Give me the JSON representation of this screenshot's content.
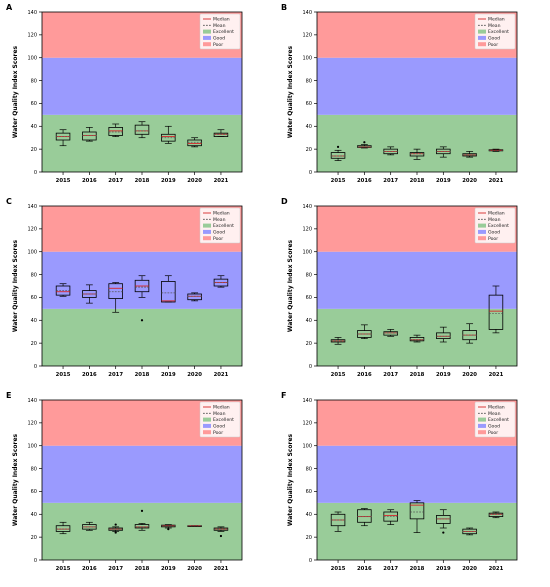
{
  "colors": {
    "band_poor": "#ff9a9a",
    "band_good": "#9a9afe",
    "band_excellent": "#99cc99",
    "median": "#d62728",
    "mean": "#555555",
    "box_edge": "#000000",
    "outlier": "#000000"
  },
  "chart_data": [
    {
      "type": "box",
      "panel_label": "A",
      "ylabel": "Water Quality Index Scores",
      "ylim": [
        0,
        140
      ],
      "yticks": [
        "0",
        "20",
        "40",
        "60",
        "80",
        "100",
        "120",
        "140"
      ],
      "bands": [
        {
          "name": "Excellent",
          "from": 0,
          "to": 50
        },
        {
          "name": "Good",
          "from": 50,
          "to": 100
        },
        {
          "name": "Poor",
          "from": 100,
          "to": 140
        }
      ],
      "legend": {
        "position": "top-right",
        "entries": [
          "Median",
          "Mean",
          "Excellent",
          "Good",
          "Poor"
        ]
      },
      "categories": [
        "2015",
        "2016",
        "2017",
        "2018",
        "2019",
        "2020",
        "2021"
      ],
      "boxes": [
        {
          "whisker_low": 23,
          "q1": 28,
          "median": 31,
          "q3": 34,
          "whisker_high": 37,
          "mean": 31,
          "outliers": []
        },
        {
          "whisker_low": 27,
          "q1": 28,
          "median": 32,
          "q3": 35,
          "whisker_high": 39,
          "mean": 32,
          "outliers": []
        },
        {
          "whisker_low": 31,
          "q1": 32,
          "median": 36,
          "q3": 39,
          "whisker_high": 42,
          "mean": 35,
          "outliers": []
        },
        {
          "whisker_low": 30,
          "q1": 33,
          "median": 36,
          "q3": 41,
          "whisker_high": 44,
          "mean": 36,
          "outliers": []
        },
        {
          "whisker_low": 25,
          "q1": 27,
          "median": 31,
          "q3": 33,
          "whisker_high": 40,
          "mean": 30,
          "outliers": []
        },
        {
          "whisker_low": 22,
          "q1": 23,
          "median": 25,
          "q3": 28,
          "whisker_high": 30,
          "mean": 26,
          "outliers": []
        },
        {
          "whisker_low": 31,
          "q1": 31,
          "median": 33,
          "q3": 34,
          "whisker_high": 37,
          "mean": 33,
          "outliers": []
        }
      ]
    },
    {
      "type": "box",
      "panel_label": "B",
      "ylabel": "Water Quality Index Scores",
      "ylim": [
        0,
        140
      ],
      "yticks": [
        "0",
        "20",
        "40",
        "60",
        "80",
        "100",
        "120",
        "140"
      ],
      "bands": [
        {
          "name": "Excellent",
          "from": 0,
          "to": 50
        },
        {
          "name": "Good",
          "from": 50,
          "to": 100
        },
        {
          "name": "Poor",
          "from": 100,
          "to": 140
        }
      ],
      "legend": {
        "position": "top-right",
        "entries": [
          "Median",
          "Mean",
          "Excellent",
          "Good",
          "Poor"
        ]
      },
      "categories": [
        "2015",
        "2016",
        "2017",
        "2018",
        "2019",
        "2020",
        "2021"
      ],
      "boxes": [
        {
          "whisker_low": 10,
          "q1": 12,
          "median": 14,
          "q3": 17,
          "whisker_high": 19,
          "mean": 14,
          "outliers": [
            22
          ]
        },
        {
          "whisker_low": 21,
          "q1": 21.5,
          "median": 22,
          "q3": 23,
          "whisker_high": 24,
          "mean": 22,
          "outliers": [
            26
          ]
        },
        {
          "whisker_low": 15,
          "q1": 16,
          "median": 18,
          "q3": 20,
          "whisker_high": 22,
          "mean": 18,
          "outliers": []
        },
        {
          "whisker_low": 11,
          "q1": 14,
          "median": 16,
          "q3": 17,
          "whisker_high": 20,
          "mean": 16,
          "outliers": []
        },
        {
          "whisker_low": 13,
          "q1": 16,
          "median": 18,
          "q3": 20,
          "whisker_high": 22,
          "mean": 18,
          "outliers": []
        },
        {
          "whisker_low": 13,
          "q1": 14,
          "median": 15,
          "q3": 16,
          "whisker_high": 18,
          "mean": 15,
          "outliers": []
        },
        {
          "whisker_low": 18,
          "q1": 18.5,
          "median": 19,
          "q3": 19.5,
          "whisker_high": 20,
          "mean": 19,
          "outliers": []
        }
      ]
    },
    {
      "type": "box",
      "panel_label": "C",
      "ylabel": "Water Quality Index Scores",
      "ylim": [
        0,
        140
      ],
      "yticks": [
        "0",
        "20",
        "40",
        "60",
        "80",
        "100",
        "120",
        "140"
      ],
      "bands": [
        {
          "name": "Excellent",
          "from": 0,
          "to": 50
        },
        {
          "name": "Good",
          "from": 50,
          "to": 100
        },
        {
          "name": "Poor",
          "from": 100,
          "to": 140
        }
      ],
      "legend": {
        "position": "top-right",
        "entries": [
          "Median",
          "Mean",
          "Excellent",
          "Good",
          "Poor"
        ]
      },
      "categories": [
        "2015",
        "2016",
        "2017",
        "2018",
        "2019",
        "2020",
        "2021"
      ],
      "boxes": [
        {
          "whisker_low": 61,
          "q1": 62,
          "median": 65,
          "q3": 70,
          "whisker_high": 72,
          "mean": 66,
          "outliers": []
        },
        {
          "whisker_low": 55,
          "q1": 60,
          "median": 63,
          "q3": 66,
          "whisker_high": 71,
          "mean": 63,
          "outliers": []
        },
        {
          "whisker_low": 47,
          "q1": 59,
          "median": 68,
          "q3": 72,
          "whisker_high": 73,
          "mean": 65,
          "outliers": []
        },
        {
          "whisker_low": 60,
          "q1": 65,
          "median": 70,
          "q3": 75,
          "whisker_high": 79,
          "mean": 69,
          "outliers": [
            40
          ]
        },
        {
          "whisker_low": 56,
          "q1": 56,
          "median": 57,
          "q3": 74,
          "whisker_high": 79,
          "mean": 64,
          "outliers": []
        },
        {
          "whisker_low": 57,
          "q1": 58,
          "median": 61,
          "q3": 63,
          "whisker_high": 64,
          "mean": 61,
          "outliers": []
        },
        {
          "whisker_low": 69,
          "q1": 70,
          "median": 73,
          "q3": 76,
          "whisker_high": 79,
          "mean": 73,
          "outliers": []
        }
      ]
    },
    {
      "type": "box",
      "panel_label": "D",
      "ylabel": "Water Quality Index Scores",
      "ylim": [
        0,
        140
      ],
      "yticks": [
        "0",
        "20",
        "40",
        "60",
        "80",
        "100",
        "120",
        "140"
      ],
      "bands": [
        {
          "name": "Excellent",
          "from": 0,
          "to": 50
        },
        {
          "name": "Good",
          "from": 50,
          "to": 100
        },
        {
          "name": "Poor",
          "from": 100,
          "to": 140
        }
      ],
      "legend": {
        "position": "top-right",
        "entries": [
          "Median",
          "Mean",
          "Excellent",
          "Good",
          "Poor"
        ]
      },
      "categories": [
        "2015",
        "2016",
        "2017",
        "2018",
        "2019",
        "2020",
        "2021"
      ],
      "boxes": [
        {
          "whisker_low": 19,
          "q1": 21,
          "median": 22,
          "q3": 23,
          "whisker_high": 25,
          "mean": 22,
          "outliers": []
        },
        {
          "whisker_low": 24,
          "q1": 25,
          "median": 28,
          "q3": 31,
          "whisker_high": 36,
          "mean": 28,
          "outliers": []
        },
        {
          "whisker_low": 26,
          "q1": 27,
          "median": 29,
          "q3": 30,
          "whisker_high": 32,
          "mean": 29,
          "outliers": []
        },
        {
          "whisker_low": 21,
          "q1": 22,
          "median": 23,
          "q3": 25,
          "whisker_high": 27,
          "mean": 23,
          "outliers": []
        },
        {
          "whisker_low": 21,
          "q1": 24,
          "median": 26,
          "q3": 29,
          "whisker_high": 34,
          "mean": 26,
          "outliers": []
        },
        {
          "whisker_low": 20,
          "q1": 23,
          "median": 27,
          "q3": 31,
          "whisker_high": 37,
          "mean": 27,
          "outliers": []
        },
        {
          "whisker_low": 29,
          "q1": 32,
          "median": 48,
          "q3": 62,
          "whisker_high": 70,
          "mean": 46,
          "outliers": []
        }
      ]
    },
    {
      "type": "box",
      "panel_label": "E",
      "ylabel": "Water Quality Index Scores",
      "ylim": [
        0,
        140
      ],
      "yticks": [
        "0",
        "20",
        "40",
        "60",
        "80",
        "100",
        "120",
        "140"
      ],
      "bands": [
        {
          "name": "Excellent",
          "from": 0,
          "to": 50
        },
        {
          "name": "Good",
          "from": 50,
          "to": 100
        },
        {
          "name": "Poor",
          "from": 100,
          "to": 140
        }
      ],
      "legend": {
        "position": "top-right",
        "entries": [
          "Median",
          "Mean",
          "Excellent",
          "Good",
          "Poor"
        ]
      },
      "categories": [
        "2015",
        "2016",
        "2017",
        "2018",
        "2019",
        "2020",
        "2021"
      ],
      "boxes": [
        {
          "whisker_low": 23,
          "q1": 25,
          "median": 27,
          "q3": 30,
          "whisker_high": 33,
          "mean": 27,
          "outliers": []
        },
        {
          "whisker_low": 26,
          "q1": 27,
          "median": 29,
          "q3": 31,
          "whisker_high": 33,
          "mean": 29,
          "outliers": []
        },
        {
          "whisker_low": 25,
          "q1": 26,
          "median": 27,
          "q3": 28,
          "whisker_high": 29,
          "mean": 27,
          "outliers": [
            31,
            24
          ]
        },
        {
          "whisker_low": 26,
          "q1": 28,
          "median": 29,
          "q3": 31,
          "whisker_high": 32,
          "mean": 29,
          "outliers": [
            43
          ]
        },
        {
          "whisker_low": 28,
          "q1": 29,
          "median": 30,
          "q3": 30.5,
          "whisker_high": 31,
          "mean": 30,
          "outliers": [
            27
          ]
        },
        {
          "whisker_low": 30,
          "q1": 30,
          "median": 30,
          "q3": 30,
          "whisker_high": 30,
          "mean": 30,
          "outliers": []
        },
        {
          "whisker_low": 25,
          "q1": 26,
          "median": 27,
          "q3": 28,
          "whisker_high": 29,
          "mean": 27,
          "outliers": [
            21
          ]
        }
      ]
    },
    {
      "type": "box",
      "panel_label": "F",
      "ylabel": "Water Quality Index Scores",
      "ylim": [
        0,
        140
      ],
      "yticks": [
        "0",
        "20",
        "40",
        "60",
        "80",
        "100",
        "120",
        "140"
      ],
      "bands": [
        {
          "name": "Excellent",
          "from": 0,
          "to": 50
        },
        {
          "name": "Good",
          "from": 50,
          "to": 100
        },
        {
          "name": "Poor",
          "from": 100,
          "to": 140
        }
      ],
      "legend": {
        "position": "top-right",
        "entries": [
          "Median",
          "Mean",
          "Excellent",
          "Good",
          "Poor"
        ]
      },
      "categories": [
        "2015",
        "2016",
        "2017",
        "2018",
        "2019",
        "2020",
        "2021"
      ],
      "boxes": [
        {
          "whisker_low": 25,
          "q1": 30,
          "median": 35,
          "q3": 40,
          "whisker_high": 42,
          "mean": 35,
          "outliers": []
        },
        {
          "whisker_low": 30,
          "q1": 33,
          "median": 38,
          "q3": 44,
          "whisker_high": 45,
          "mean": 38,
          "outliers": []
        },
        {
          "whisker_low": 31,
          "q1": 34,
          "median": 39,
          "q3": 42,
          "whisker_high": 44,
          "mean": 38,
          "outliers": []
        },
        {
          "whisker_low": 24,
          "q1": 36,
          "median": 48,
          "q3": 50,
          "whisker_high": 52,
          "mean": 42,
          "outliers": []
        },
        {
          "whisker_low": 28,
          "q1": 32,
          "median": 36,
          "q3": 39,
          "whisker_high": 44,
          "mean": 36,
          "outliers": [
            24
          ]
        },
        {
          "whisker_low": 22,
          "q1": 23,
          "median": 25,
          "q3": 27,
          "whisker_high": 28,
          "mean": 25,
          "outliers": []
        },
        {
          "whisker_low": 37,
          "q1": 38,
          "median": 40,
          "q3": 41,
          "whisker_high": 42,
          "mean": 40,
          "outliers": []
        }
      ]
    }
  ]
}
